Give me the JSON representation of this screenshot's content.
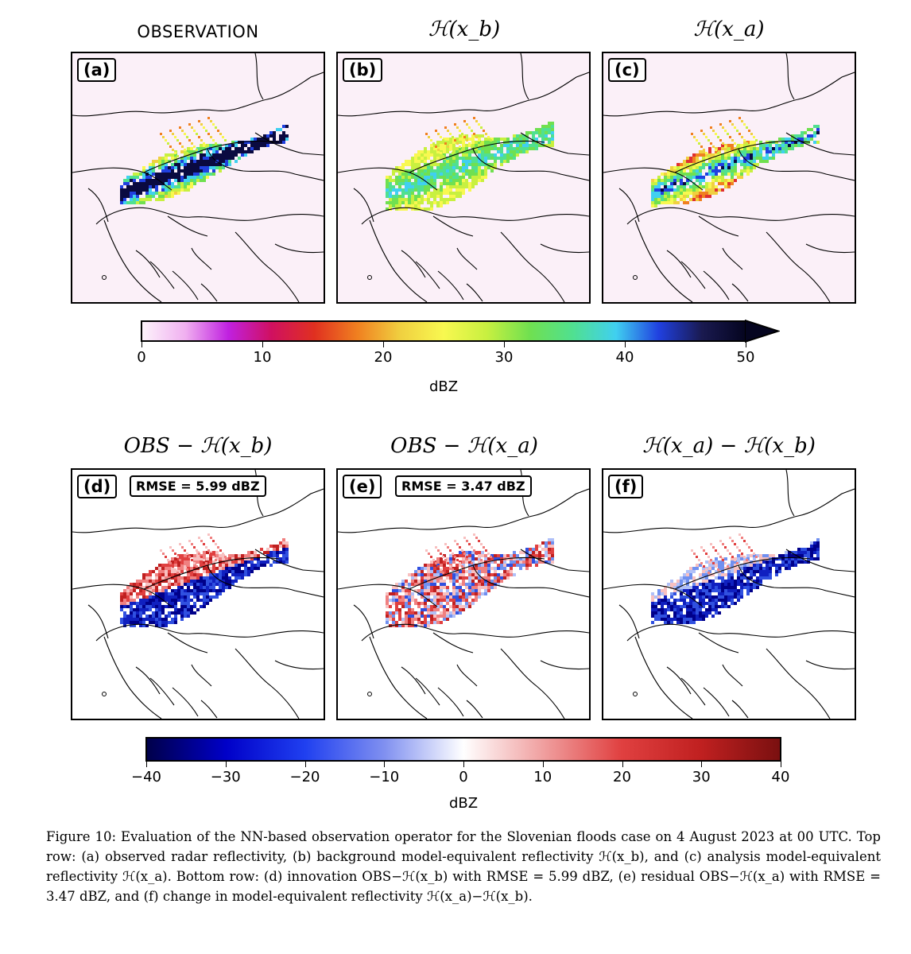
{
  "top_row": {
    "titles": [
      "OBSERVATION",
      "ℋ(x_b)",
      "ℋ(x_a)"
    ],
    "panel_labels": [
      "(a)",
      "(b)",
      "(c)"
    ]
  },
  "top_colorbar": {
    "ticks": [
      "0",
      "10",
      "20",
      "30",
      "40",
      "50"
    ],
    "label": "dBZ",
    "range": [
      0,
      50
    ],
    "extend": "max",
    "colors": [
      "#fdf3fb",
      "#f0b0f0",
      "#c020e0",
      "#d01060",
      "#e03020",
      "#f08020",
      "#f0d040",
      "#f8f850",
      "#c8f040",
      "#70e050",
      "#50e090",
      "#40d0f0",
      "#2040e0",
      "#1a1a50",
      "#050520"
    ]
  },
  "bottom_row": {
    "titles": [
      "OBS − ℋ(x_b)",
      "OBS − ℋ(x_a)",
      "ℋ(x_a) − ℋ(x_b)"
    ],
    "panel_labels": [
      "(d)",
      "(e)",
      "(f)"
    ],
    "rmse": [
      "RMSE = 5.99 dBZ",
      "RMSE = 3.47 dBZ"
    ]
  },
  "bottom_colorbar": {
    "ticks": [
      "−40",
      "−30",
      "−20",
      "−10",
      "0",
      "10",
      "20",
      "30",
      "40"
    ],
    "label": "dBZ",
    "range": [
      -40,
      40
    ],
    "colors": [
      "#00004a",
      "#0000c8",
      "#2040f0",
      "#8090f0",
      "#ffffff",
      "#f0a0a0",
      "#e04040",
      "#c02020",
      "#7a1010"
    ]
  },
  "caption": "Figure 10: Evaluation of the NN-based observation operator for the Slovenian floods case on 4 August 2023 at 00 UTC. Top row: (a) observed radar reflectivity, (b) background model-equivalent reflectivity ℋ(x_b), and (c) analysis model-equivalent reflectivity ℋ(x_a). Bottom row: (d) innovation OBS−ℋ(x_b) with RMSE = 5.99 dBZ, (e) residual OBS−ℋ(x_a) with RMSE = 3.47 dBZ, and (f) change in model-equivalent reflectivity ℋ(x_a)−ℋ(x_b)."
}
